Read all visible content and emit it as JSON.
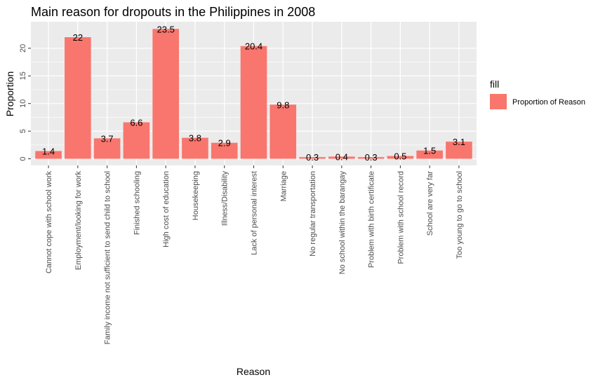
{
  "chart_data": {
    "type": "bar",
    "title": "Main reason for dropouts in the Philippines in 2008",
    "xlabel": "Reason",
    "ylabel": "Proportion",
    "ylim": [
      -1.2,
      24.8
    ],
    "yticks": [
      0,
      5,
      10,
      15,
      20
    ],
    "grid": true,
    "legend": {
      "title": "fill",
      "position": "right",
      "entries": [
        {
          "label": "Proportion of Reason",
          "color": "#F8766D"
        }
      ]
    },
    "categories": [
      "Cannot cope with school work",
      "Employment/looking for work",
      "Family income not sufficient to send child to school",
      "Finished schooling",
      "High cost of education",
      "Housekeeping",
      "Illness/Disability",
      "Lack of personal interest",
      "Marriage",
      "No regular transportation",
      "No school within the barangay",
      "Problem with birth certificate",
      "Problem with school record",
      "School are very far",
      "Too young to go to school"
    ],
    "series": [
      {
        "name": "Proportion of Reason",
        "color": "#F8766D",
        "values": [
          1.4,
          22,
          3.7,
          6.6,
          23.5,
          3.8,
          2.9,
          20.4,
          9.8,
          0.3,
          0.4,
          0.3,
          0.5,
          1.5,
          3.1
        ],
        "labels": [
          "1.4",
          "22",
          "3.7",
          "6.6",
          "23.5",
          "3.8",
          "2.9",
          "20.4",
          "9.8",
          "0.3",
          "0.4",
          "0.3",
          "0.5",
          "1.5",
          "3.1"
        ]
      }
    ]
  }
}
